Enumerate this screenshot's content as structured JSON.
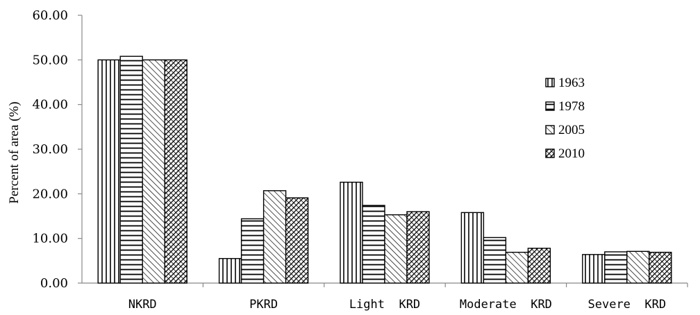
{
  "chart_data": {
    "type": "bar",
    "title": "",
    "xlabel": "",
    "ylabel": "Percent of area (%)",
    "ylim": [
      0,
      60
    ],
    "yticks": [
      "0.00",
      "10.00",
      "20.00",
      "30.00",
      "40.00",
      "50.00",
      "60.00"
    ],
    "categories": [
      "NKRD",
      "PKRD",
      "Light  KRD",
      "Moderate  KRD",
      "Severe  KRD"
    ],
    "series": [
      {
        "name": "1963",
        "pattern": "vertical-lines",
        "values": [
          50.0,
          5.5,
          22.6,
          15.8,
          6.4
        ]
      },
      {
        "name": "1978",
        "pattern": "horizontal-lines",
        "values": [
          50.8,
          14.4,
          17.4,
          10.2,
          7.0
        ]
      },
      {
        "name": "2005",
        "pattern": "diagonal-lines",
        "values": [
          50.0,
          20.7,
          15.3,
          6.9,
          7.1
        ]
      },
      {
        "name": "2010",
        "pattern": "dense-crosshatch",
        "values": [
          50.0,
          19.1,
          16.0,
          7.8,
          6.9
        ]
      }
    ],
    "legend_position": "right",
    "grid": false,
    "colors": {
      "stroke": "#000000",
      "fill": "#ffffff"
    }
  }
}
